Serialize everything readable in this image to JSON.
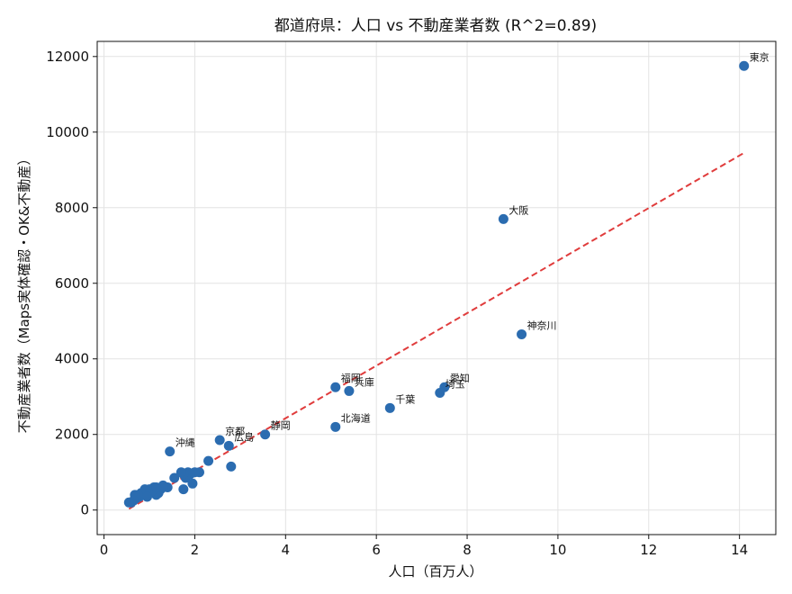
{
  "chart_data": {
    "type": "scatter",
    "title": "都道府県：人口 vs 不動産業者数  (R^2=0.89)",
    "xlabel": "人口（百万人）",
    "ylabel": "不動産業者数（Maps実体確認・OK&不動産）",
    "xlim": [
      -0.15,
      14.8
    ],
    "ylim": [
      -650,
      12400
    ],
    "xticks": [
      "0",
      "2",
      "4",
      "6",
      "8",
      "10",
      "12",
      "14"
    ],
    "yticks": [
      "0",
      "2000",
      "4000",
      "6000",
      "8000",
      "10000",
      "12000"
    ],
    "grid": true,
    "point_color": "#2b6cb0",
    "trend_color": "#e03c3c",
    "trendline": {
      "x": [
        0.55,
        14.1
      ],
      "y": [
        30,
        9450
      ]
    },
    "points": [
      {
        "x": 14.1,
        "y": 11750,
        "label": "東京"
      },
      {
        "x": 8.8,
        "y": 7700,
        "label": "大阪"
      },
      {
        "x": 9.2,
        "y": 4650,
        "label": "神奈川"
      },
      {
        "x": 7.5,
        "y": 3250,
        "label": "愛知"
      },
      {
        "x": 7.4,
        "y": 3100,
        "label": "埼玉"
      },
      {
        "x": 6.3,
        "y": 2700,
        "label": "千葉"
      },
      {
        "x": 5.4,
        "y": 3150,
        "label": "兵庫"
      },
      {
        "x": 5.1,
        "y": 3250,
        "label": "福岡"
      },
      {
        "x": 5.1,
        "y": 2200,
        "label": "北海道"
      },
      {
        "x": 3.55,
        "y": 2000,
        "label": "静岡"
      },
      {
        "x": 2.55,
        "y": 1850,
        "label": "京都"
      },
      {
        "x": 2.75,
        "y": 1700,
        "label": "広島"
      },
      {
        "x": 1.45,
        "y": 1550,
        "label": "沖縄"
      },
      {
        "x": 2.8,
        "y": 1150,
        "label": ""
      },
      {
        "x": 2.3,
        "y": 1300,
        "label": ""
      },
      {
        "x": 2.1,
        "y": 1000,
        "label": ""
      },
      {
        "x": 2.0,
        "y": 1000,
        "label": ""
      },
      {
        "x": 1.9,
        "y": 950,
        "label": ""
      },
      {
        "x": 1.85,
        "y": 1000,
        "label": ""
      },
      {
        "x": 1.8,
        "y": 850,
        "label": ""
      },
      {
        "x": 1.75,
        "y": 950,
        "label": ""
      },
      {
        "x": 1.7,
        "y": 1000,
        "label": ""
      },
      {
        "x": 1.95,
        "y": 700,
        "label": ""
      },
      {
        "x": 1.75,
        "y": 550,
        "label": ""
      },
      {
        "x": 1.55,
        "y": 850,
        "label": ""
      },
      {
        "x": 1.4,
        "y": 600,
        "label": ""
      },
      {
        "x": 1.3,
        "y": 650,
        "label": ""
      },
      {
        "x": 1.25,
        "y": 550,
        "label": ""
      },
      {
        "x": 1.2,
        "y": 450,
        "label": ""
      },
      {
        "x": 1.15,
        "y": 400,
        "label": ""
      },
      {
        "x": 1.1,
        "y": 600,
        "label": ""
      },
      {
        "x": 1.05,
        "y": 500,
        "label": ""
      },
      {
        "x": 1.0,
        "y": 550,
        "label": ""
      },
      {
        "x": 0.95,
        "y": 450,
        "label": ""
      },
      {
        "x": 0.9,
        "y": 550,
        "label": ""
      },
      {
        "x": 0.88,
        "y": 400,
        "label": ""
      },
      {
        "x": 0.82,
        "y": 450,
        "label": ""
      },
      {
        "x": 0.78,
        "y": 350,
        "label": ""
      },
      {
        "x": 0.75,
        "y": 400,
        "label": ""
      },
      {
        "x": 0.7,
        "y": 300,
        "label": ""
      },
      {
        "x": 0.68,
        "y": 400,
        "label": ""
      },
      {
        "x": 0.65,
        "y": 250,
        "label": ""
      },
      {
        "x": 0.6,
        "y": 200,
        "label": ""
      },
      {
        "x": 0.55,
        "y": 200,
        "label": ""
      },
      {
        "x": 0.95,
        "y": 350,
        "label": ""
      },
      {
        "x": 1.3,
        "y": 600,
        "label": ""
      },
      {
        "x": 1.15,
        "y": 600,
        "label": ""
      }
    ]
  }
}
